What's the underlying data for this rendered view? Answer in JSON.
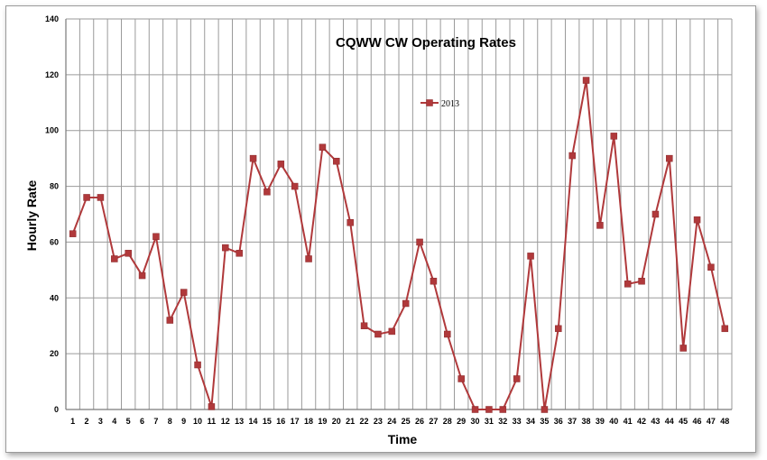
{
  "chart_data": {
    "type": "line",
    "title": "CQWW CW Operating Rates",
    "xlabel": "Time",
    "ylabel": "Hourly Rate",
    "ylim": [
      0,
      140
    ],
    "yticks": [
      0,
      20,
      40,
      60,
      80,
      100,
      120,
      140
    ],
    "grid": true,
    "legend_position": "top-center",
    "categories": [
      "1",
      "2",
      "3",
      "4",
      "5",
      "6",
      "7",
      "8",
      "9",
      "10",
      "11",
      "12",
      "13",
      "14",
      "15",
      "16",
      "17",
      "18",
      "19",
      "20",
      "21",
      "22",
      "23",
      "24",
      "25",
      "26",
      "27",
      "28",
      "29",
      "30",
      "31",
      "32",
      "33",
      "34",
      "35",
      "36",
      "37",
      "38",
      "39",
      "40",
      "41",
      "42",
      "43",
      "44",
      "45",
      "46",
      "47",
      "48"
    ],
    "series": [
      {
        "name": "2013",
        "color": "#b0393b",
        "values": [
          63,
          76,
          76,
          54,
          56,
          48,
          62,
          32,
          42,
          16,
          1,
          58,
          56,
          90,
          78,
          88,
          80,
          54,
          94,
          89,
          67,
          30,
          27,
          28,
          38,
          60,
          46,
          27,
          11,
          0,
          0,
          0,
          11,
          55,
          0,
          29,
          91,
          118,
          66,
          98,
          45,
          46,
          70,
          90,
          22,
          68,
          51,
          29
        ]
      }
    ]
  }
}
